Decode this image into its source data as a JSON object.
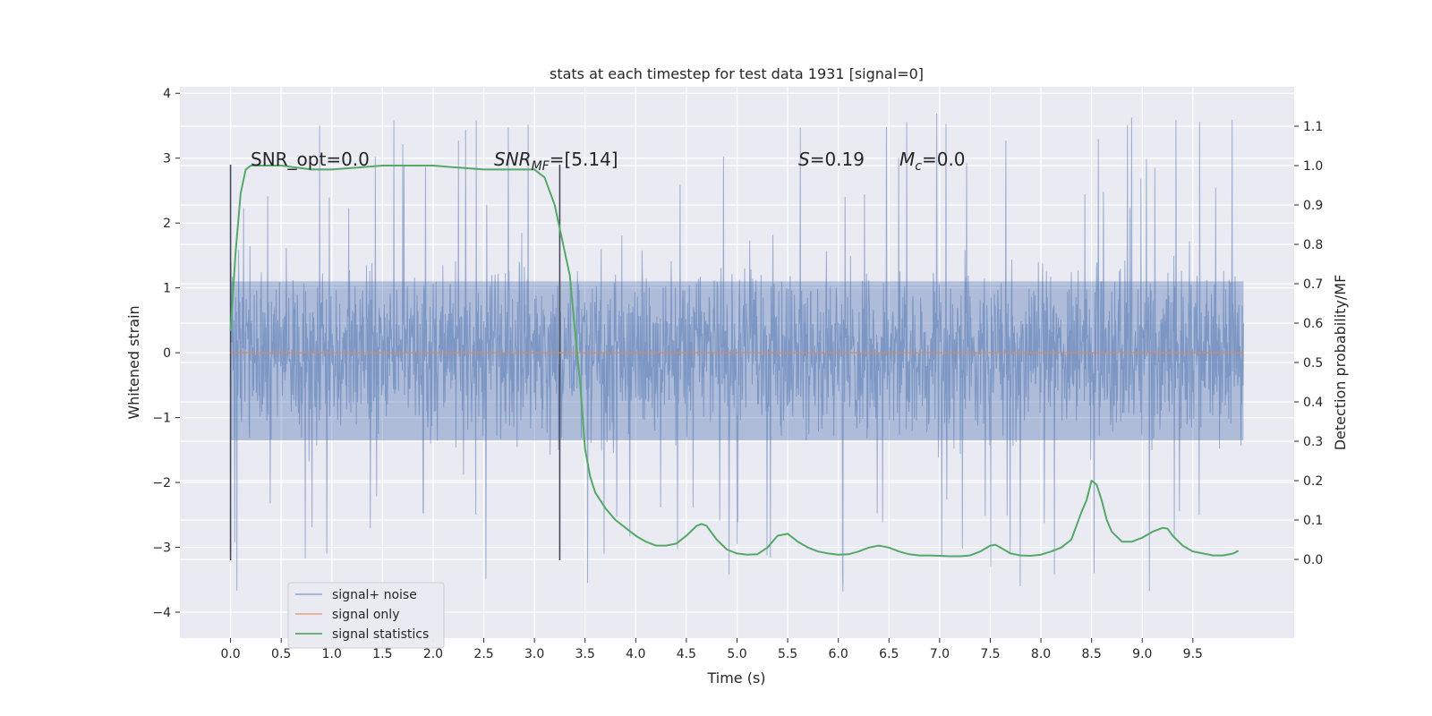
{
  "chart_data": {
    "type": "line",
    "title": "stats at each timestep for test data 1931 [signal=0]",
    "xlabel": "Time (s)",
    "ylabel": "Whitened strain",
    "y2label": "Detection probability/MF",
    "xlim": [
      -0.5,
      10.5
    ],
    "ylim": [
      -4.4,
      4.1
    ],
    "y2lim": [
      -0.2,
      1.2
    ],
    "xticks": [
      "0.0",
      "0.5",
      "1.0",
      "1.5",
      "2.0",
      "2.5",
      "3.0",
      "3.5",
      "4.0",
      "4.5",
      "5.0",
      "5.5",
      "6.0",
      "6.5",
      "7.0",
      "7.5",
      "8.0",
      "8.5",
      "9.0",
      "9.5"
    ],
    "yticks": [
      "4",
      "3",
      "2",
      "1",
      "0",
      "−1",
      "−2",
      "−3",
      "−4"
    ],
    "y2ticks": [
      "0.0",
      "0.1",
      "0.2",
      "0.3",
      "0.4",
      "0.5",
      "0.6",
      "0.7",
      "0.8",
      "0.9",
      "1.0",
      "1.1"
    ],
    "grid": true,
    "legend_position": "lower-left",
    "annotations": {
      "snr_opt": "SNR_opt=0.0",
      "snr_mf_base": "SNR",
      "snr_mf_sub": "MF",
      "snr_mf_value": "=[5.14]",
      "s_sym": "S",
      "s_value": "=0.19",
      "mc_sym": "M",
      "mc_sub": "c",
      "mc_value": "=0.0"
    },
    "vlines": [
      {
        "x": 0.0,
        "y_range": [
          -3.2,
          2.9
        ]
      },
      {
        "x": 3.25,
        "y_range": [
          -3.2,
          2.9
        ]
      }
    ],
    "series": [
      {
        "name": "signal+ noise",
        "color": "#4c72b0",
        "axis": "left",
        "description_range": [
          -3.8,
          3.75
        ],
        "x_range": [
          0.0,
          10.0
        ],
        "envelope": {
          "dense_upper": 1.1,
          "dense_lower": -1.35,
          "spike_upper_max": 3.75,
          "spike_lower_min": -3.8
        }
      },
      {
        "name": "signal only",
        "color": "#dd8452",
        "axis": "left",
        "x": [
          0.0,
          10.0
        ],
        "y": [
          0.0,
          0.0
        ]
      },
      {
        "name": "signal statistics",
        "color": "#55a868",
        "axis": "right",
        "x": [
          0.0,
          0.05,
          0.1,
          0.15,
          0.2,
          0.3,
          0.5,
          0.8,
          1.0,
          1.5,
          2.0,
          2.5,
          2.8,
          3.0,
          3.1,
          3.2,
          3.3,
          3.35,
          3.4,
          3.45,
          3.5,
          3.55,
          3.6,
          3.7,
          3.8,
          3.9,
          4.0,
          4.1,
          4.2,
          4.3,
          4.4,
          4.5,
          4.6,
          4.65,
          4.7,
          4.8,
          4.9,
          5.0,
          5.1,
          5.2,
          5.3,
          5.4,
          5.5,
          5.6,
          5.7,
          5.8,
          5.9,
          6.0,
          6.1,
          6.2,
          6.3,
          6.4,
          6.5,
          6.6,
          6.7,
          6.8,
          6.9,
          7.0,
          7.1,
          7.2,
          7.3,
          7.4,
          7.5,
          7.55,
          7.6,
          7.7,
          7.8,
          7.9,
          8.0,
          8.1,
          8.2,
          8.3,
          8.4,
          8.45,
          8.5,
          8.55,
          8.6,
          8.65,
          8.7,
          8.8,
          8.9,
          9.0,
          9.1,
          9.2,
          9.25,
          9.3,
          9.4,
          9.5,
          9.6,
          9.7,
          9.8,
          9.9,
          9.95
        ],
        "y": [
          0.58,
          0.78,
          0.93,
          0.99,
          1.0,
          1.0,
          1.0,
          0.99,
          0.99,
          1.0,
          1.0,
          0.99,
          0.99,
          0.99,
          0.97,
          0.9,
          0.78,
          0.72,
          0.58,
          0.45,
          0.28,
          0.21,
          0.17,
          0.13,
          0.1,
          0.08,
          0.06,
          0.045,
          0.035,
          0.035,
          0.04,
          0.06,
          0.085,
          0.09,
          0.085,
          0.05,
          0.025,
          0.015,
          0.012,
          0.013,
          0.03,
          0.06,
          0.065,
          0.045,
          0.03,
          0.02,
          0.015,
          0.012,
          0.013,
          0.02,
          0.03,
          0.035,
          0.03,
          0.02,
          0.013,
          0.01,
          0.01,
          0.009,
          0.008,
          0.008,
          0.01,
          0.02,
          0.035,
          0.037,
          0.03,
          0.015,
          0.01,
          0.009,
          0.012,
          0.02,
          0.03,
          0.05,
          0.12,
          0.15,
          0.2,
          0.19,
          0.15,
          0.1,
          0.07,
          0.045,
          0.045,
          0.055,
          0.07,
          0.08,
          0.078,
          0.06,
          0.035,
          0.02,
          0.015,
          0.01,
          0.01,
          0.015,
          0.022
        ]
      }
    ]
  }
}
